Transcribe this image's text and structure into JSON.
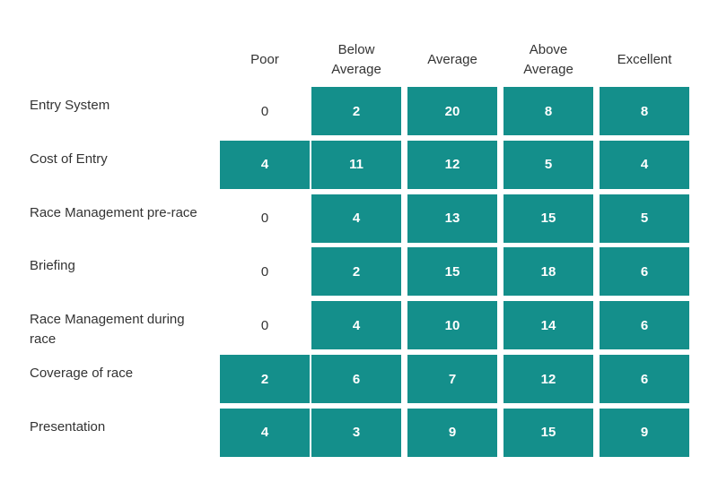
{
  "chart_data": {
    "type": "table",
    "columns": [
      "Poor",
      "Below\nAverage",
      "Average",
      "Above\nAverage",
      "Excellent"
    ],
    "rows": [
      {
        "label": "Entry System",
        "values": [
          0,
          2,
          20,
          8,
          8
        ]
      },
      {
        "label": "Cost of Entry",
        "values": [
          4,
          11,
          12,
          5,
          4
        ]
      },
      {
        "label": "Race Management pre-race",
        "values": [
          0,
          4,
          13,
          15,
          5
        ]
      },
      {
        "label": "Briefing",
        "values": [
          0,
          2,
          15,
          18,
          6
        ]
      },
      {
        "label": "Race Management during race",
        "values": [
          0,
          4,
          10,
          14,
          6
        ]
      },
      {
        "label": "Coverage of race",
        "values": [
          2,
          6,
          7,
          12,
          6
        ]
      },
      {
        "label": "Presentation",
        "values": [
          4,
          3,
          9,
          15,
          9
        ]
      }
    ],
    "fill_color": "#148f8b",
    "empty_color": "#ffffff"
  }
}
